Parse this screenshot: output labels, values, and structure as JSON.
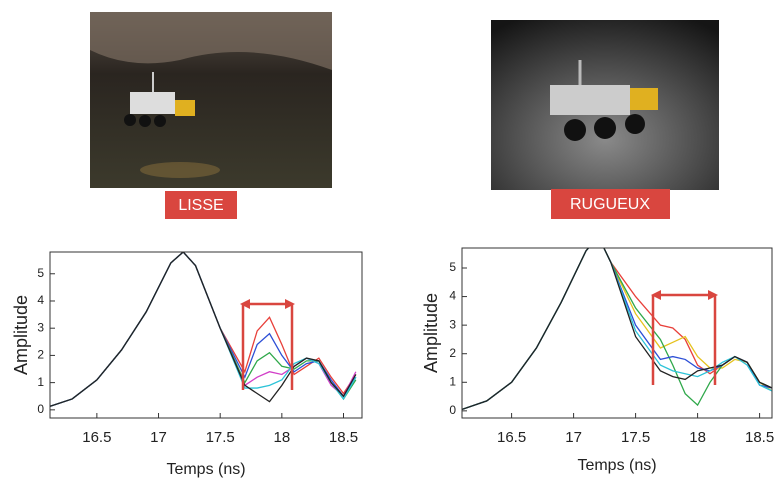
{
  "photos": [
    {
      "label": "LISSE"
    },
    {
      "label": "RUGUEUX"
    }
  ],
  "chart_data": [
    {
      "type": "line",
      "xlabel": "Temps (ns)",
      "ylabel": "Amplitude",
      "x": [
        16.1,
        16.3,
        16.5,
        16.7,
        16.9,
        17.1,
        17.2,
        17.3,
        17.5,
        17.7,
        17.8,
        17.9,
        18.0,
        18.1,
        18.2,
        18.3,
        18.4,
        18.5,
        18.6
      ],
      "xlim": [
        16.12,
        18.65
      ],
      "ylim": [
        -0.3,
        5.8
      ],
      "xticks": [
        16.5,
        17,
        17.5,
        18,
        18.5
      ],
      "yticks": [
        0,
        1,
        2,
        3,
        4,
        5
      ],
      "series": [
        {
          "color": "#e8403a",
          "values": [
            0.1,
            0.4,
            1.1,
            2.2,
            3.6,
            5.4,
            5.8,
            5.3,
            3.0,
            1.4,
            2.9,
            3.4,
            2.4,
            1.3,
            1.6,
            1.9,
            1.2,
            0.6,
            1.3
          ]
        },
        {
          "color": "#2d4fd6",
          "values": [
            0.1,
            0.4,
            1.1,
            2.2,
            3.6,
            5.4,
            5.8,
            5.3,
            3.0,
            1.2,
            2.4,
            2.8,
            2.0,
            1.4,
            1.7,
            1.8,
            1.1,
            0.5,
            1.2
          ]
        },
        {
          "color": "#2fa84a",
          "values": [
            0.1,
            0.4,
            1.1,
            2.2,
            3.6,
            5.4,
            5.8,
            5.3,
            3.0,
            1.0,
            1.8,
            2.1,
            1.6,
            1.5,
            1.8,
            1.8,
            1.0,
            0.4,
            1.1
          ]
        },
        {
          "color": "#d23fc8",
          "values": [
            0.1,
            0.4,
            1.1,
            2.2,
            3.6,
            5.4,
            5.8,
            5.3,
            3.0,
            0.9,
            1.2,
            1.4,
            1.3,
            1.6,
            1.9,
            1.7,
            0.9,
            0.5,
            1.4
          ]
        },
        {
          "color": "#2cc3d8",
          "values": [
            0.1,
            0.4,
            1.1,
            2.2,
            3.6,
            5.4,
            5.8,
            5.3,
            3.0,
            0.8,
            0.8,
            0.9,
            1.1,
            1.7,
            1.9,
            1.7,
            1.0,
            0.4,
            1.2
          ]
        },
        {
          "color": "#222222",
          "values": [
            0.1,
            0.4,
            1.1,
            2.2,
            3.6,
            5.4,
            5.8,
            5.3,
            3.0,
            0.9,
            0.6,
            0.3,
            0.9,
            1.6,
            1.9,
            1.8,
            1.0,
            0.5,
            1.3
          ]
        }
      ]
    },
    {
      "type": "line",
      "xlabel": "Temps (ns)",
      "ylabel": "Amplitude",
      "x": [
        16.1,
        16.3,
        16.5,
        16.7,
        16.9,
        17.1,
        17.2,
        17.3,
        17.5,
        17.7,
        17.8,
        17.9,
        18.0,
        18.1,
        18.2,
        18.3,
        18.4,
        18.5,
        18.6
      ],
      "xlim": [
        16.1,
        18.6
      ],
      "ylim": [
        -0.25,
        5.7
      ],
      "xticks": [
        16.5,
        17,
        17.5,
        18,
        18.5
      ],
      "yticks": [
        0,
        1,
        2,
        3,
        4,
        5
      ],
      "series": [
        {
          "color": "#e8403a",
          "values": [
            0.05,
            0.35,
            1.0,
            2.2,
            3.8,
            5.6,
            6.1,
            5.2,
            4.0,
            3.0,
            2.9,
            2.5,
            1.6,
            1.3,
            1.6,
            1.9,
            1.7,
            1.0,
            0.8
          ]
        },
        {
          "color": "#e6c21d",
          "values": [
            0.05,
            0.35,
            1.0,
            2.2,
            3.8,
            5.6,
            6.1,
            5.2,
            3.4,
            2.2,
            2.4,
            2.6,
            1.9,
            1.5,
            1.5,
            1.8,
            1.7,
            1.0,
            0.7
          ]
        },
        {
          "color": "#2fa84a",
          "values": [
            0.05,
            0.35,
            1.0,
            2.2,
            3.8,
            5.6,
            6.1,
            5.2,
            3.6,
            2.5,
            1.6,
            0.6,
            0.2,
            1.0,
            1.6,
            1.9,
            1.7,
            1.0,
            0.8
          ]
        },
        {
          "color": "#2d4fd6",
          "values": [
            0.05,
            0.35,
            1.0,
            2.2,
            3.8,
            5.6,
            6.1,
            5.2,
            3.0,
            1.8,
            1.9,
            1.8,
            1.5,
            1.4,
            1.6,
            1.9,
            1.7,
            0.9,
            0.8
          ]
        },
        {
          "color": "#2cc3d8",
          "values": [
            0.05,
            0.35,
            1.0,
            2.2,
            3.8,
            5.6,
            6.1,
            5.2,
            2.8,
            1.6,
            1.4,
            1.3,
            1.2,
            1.4,
            1.7,
            1.9,
            1.6,
            0.9,
            0.7
          ]
        },
        {
          "color": "#222222",
          "values": [
            0.05,
            0.35,
            1.0,
            2.2,
            3.8,
            5.6,
            6.1,
            5.2,
            2.6,
            1.4,
            1.2,
            1.1,
            1.4,
            1.5,
            1.6,
            1.9,
            1.7,
            1.0,
            0.8
          ]
        }
      ]
    }
  ]
}
